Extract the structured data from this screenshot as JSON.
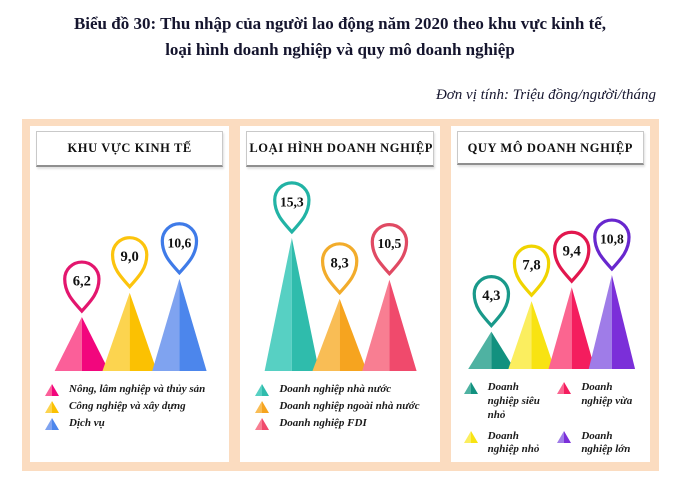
{
  "title": {
    "line1": "Biểu đồ 30: Thu nhập của người lao động năm 2020 theo khu vực kinh tế,",
    "line2": "loại hình doanh nghiệp và quy mô doanh nghiệp"
  },
  "unit_note": "Đơn vị tính: Triệu đồng/người/tháng",
  "colors": {
    "page_background": "#ffffff",
    "board_background": "#fbdcc0",
    "card_background": "#ffffff",
    "title_text": "#15152e",
    "legend_text": "#1a1a1a"
  },
  "chart_data": [
    {
      "type": "bar",
      "title": "KHU VỰC KINH TẾ",
      "categories": [
        "Nông, lâm nghiệp và thủy sản",
        "Công nghiệp và xây dựng",
        "Dịch vụ"
      ],
      "values": [
        6.2,
        9.0,
        10.6
      ],
      "value_labels": [
        "6,2",
        "9,0",
        "10,6"
      ],
      "unit": "Triệu đồng/người/tháng",
      "ylim": [
        0,
        16
      ],
      "bar_style": "triangle-two-tone",
      "colors_light": [
        "#fb5f99",
        "#fcd44f",
        "#7fa3f0"
      ],
      "colors_dark": [
        "#f2067d",
        "#fbc102",
        "#4c86ec"
      ],
      "marker_outline_colors": [
        "#e3166e",
        "#fcc40d",
        "#3f7be8"
      ],
      "legend_position": "bottom",
      "legend_columns": 1
    },
    {
      "type": "bar",
      "title": "LOẠI HÌNH DOANH NGHIỆP",
      "categories": [
        "Doanh nghiệp nhà nước",
        "Doanh nghiệp ngoài nhà nước",
        "Doanh nghiệp FDI"
      ],
      "values": [
        15.3,
        8.3,
        10.5
      ],
      "value_labels": [
        "15,3",
        "8,3",
        "10,5"
      ],
      "unit": "Triệu đồng/người/tháng",
      "ylim": [
        0,
        16
      ],
      "bar_style": "triangle-two-tone",
      "colors_light": [
        "#57d0c3",
        "#f9bd55",
        "#f87e92"
      ],
      "colors_dark": [
        "#2fbcac",
        "#f6a41f",
        "#f04a6c"
      ],
      "marker_outline_colors": [
        "#22b3a5",
        "#f2ac2b",
        "#e04a63"
      ],
      "legend_position": "bottom",
      "legend_columns": 1
    },
    {
      "type": "bar",
      "title": "QUY MÔ DOANH NGHIỆP",
      "categories": [
        "Doanh nghiệp siêu nhỏ",
        "Doanh nghiệp nhỏ",
        "Doanh nghiệp vừa",
        "Doanh nghiệp lớn"
      ],
      "values": [
        4.3,
        7.8,
        9.4,
        10.8
      ],
      "value_labels": [
        "4,3",
        "7,8",
        "9,4",
        "10,8"
      ],
      "unit": "Triệu đồng/người/tháng",
      "ylim": [
        0,
        16
      ],
      "bar_style": "triangle-two-tone",
      "colors_light": [
        "#4fb2a2",
        "#fbee5f",
        "#fb6590",
        "#9f7ce8"
      ],
      "colors_dark": [
        "#12917f",
        "#f8e312",
        "#f41d5e",
        "#7b2fd9"
      ],
      "marker_outline_colors": [
        "#19998a",
        "#f0d400",
        "#e2174e",
        "#6827ce"
      ],
      "legend_position": "bottom",
      "legend_columns": 2
    }
  ]
}
